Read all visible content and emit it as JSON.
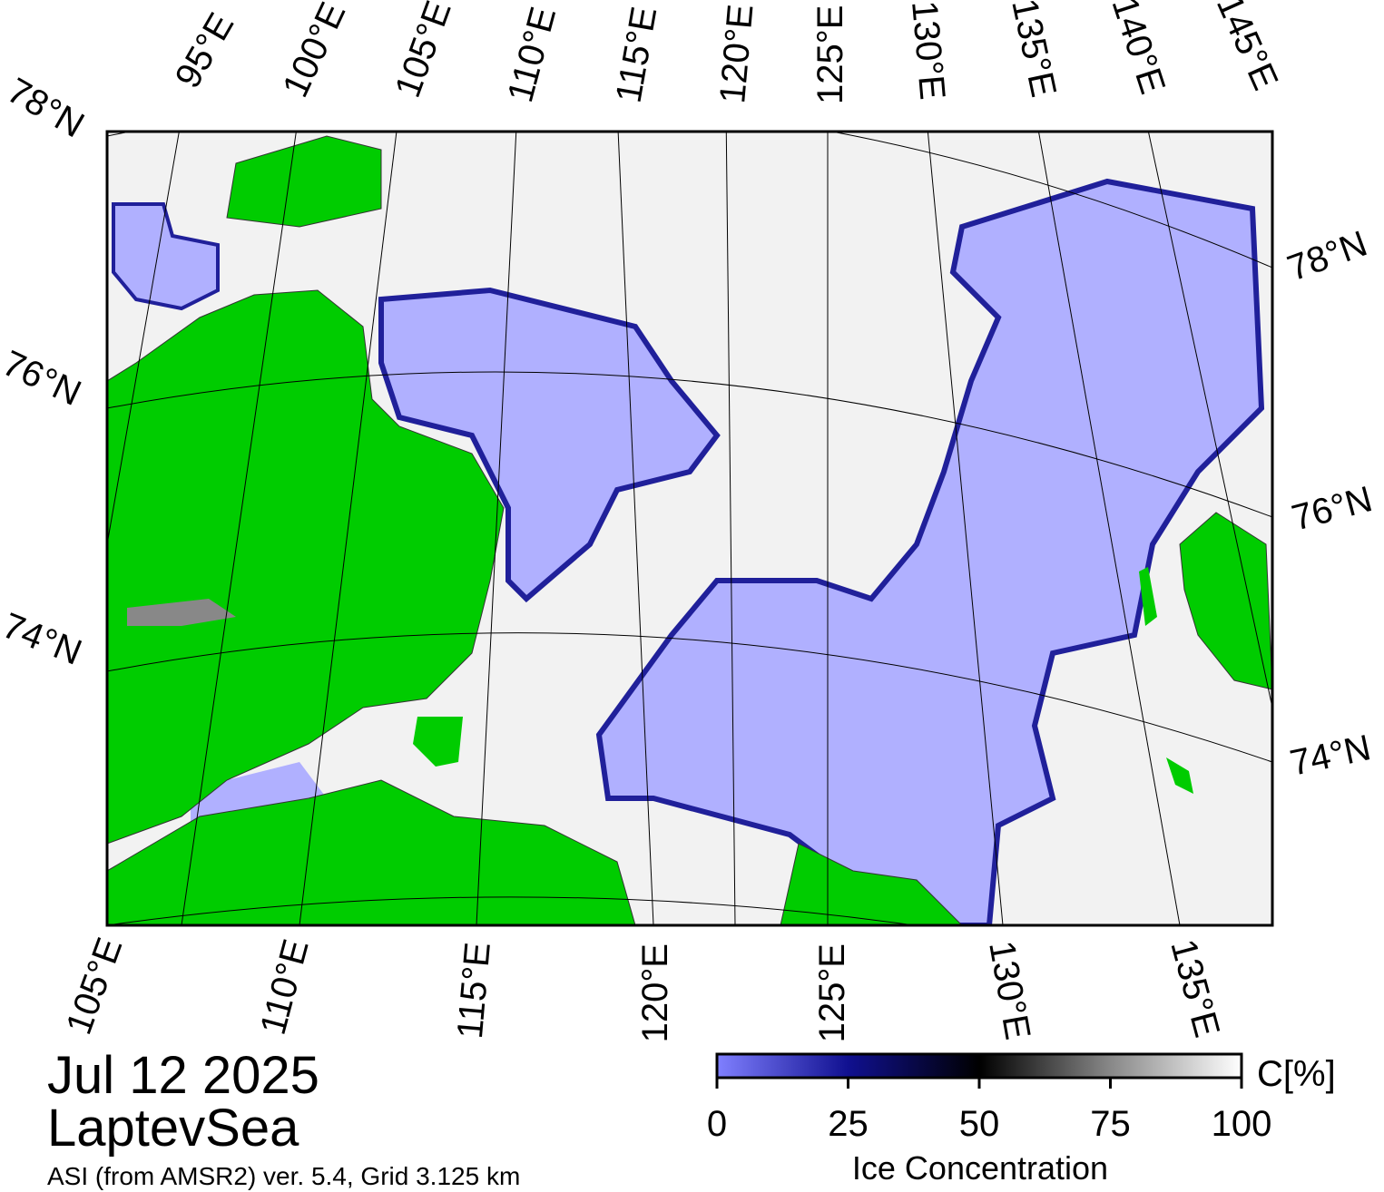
{
  "date": "Jul 12 2025",
  "region": "LaptevSea",
  "product": "ASI (from AMSR2) ver. 5.4,  Grid 3.125 km",
  "map": {
    "top_labels": [
      "95°E",
      "100°E",
      "105°E",
      "110°E",
      "115°E",
      "120°E",
      "125°E",
      "130°E",
      "135°E",
      "140°E",
      "145°E"
    ],
    "left_labels": [
      "78°N",
      "76°N",
      "74°N"
    ],
    "right_labels": [
      "78°N",
      "76°N",
      "74°N"
    ],
    "bottom_labels": [
      "105°E",
      "110°E",
      "115°E",
      "120°E",
      "125°E",
      "130°E",
      "135°E"
    ]
  },
  "colorbar": {
    "unit": "C[%]",
    "title": "Ice Concentration",
    "ticks": [
      0,
      25,
      50,
      75,
      100
    ]
  }
}
